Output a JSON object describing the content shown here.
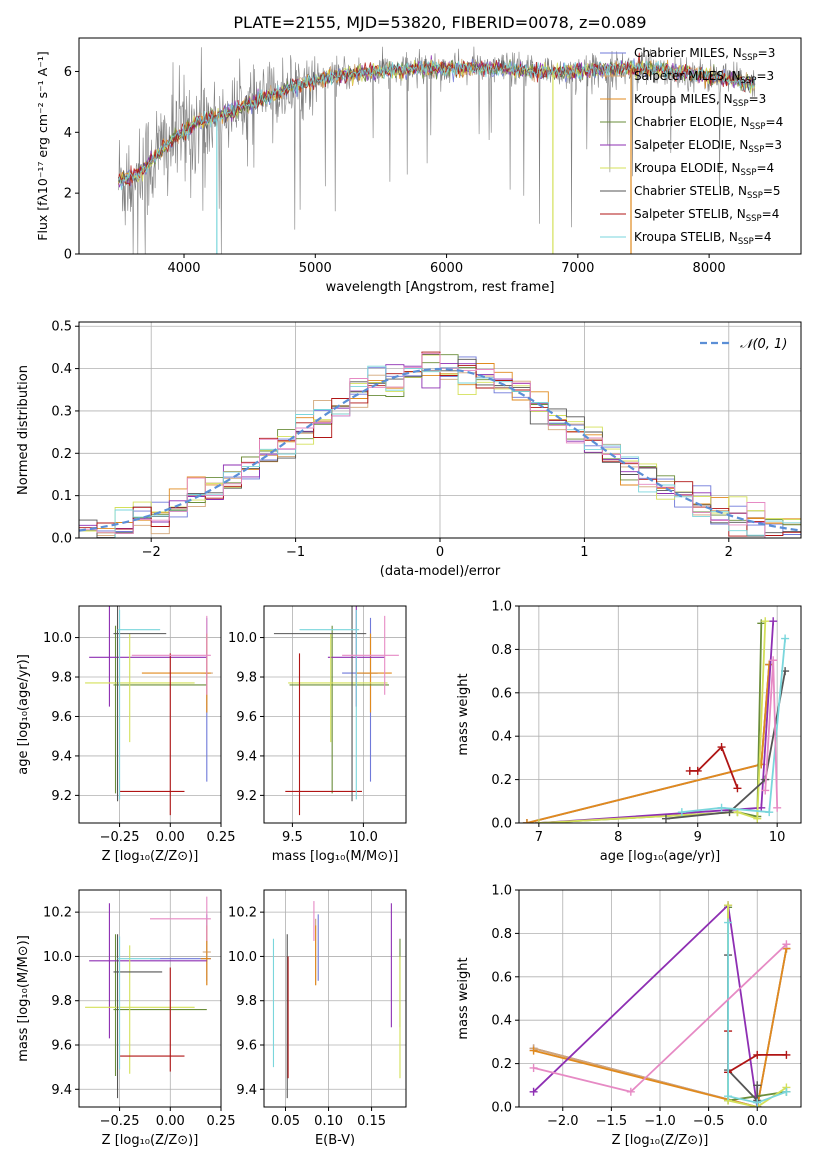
{
  "figure_title": "PLATE=2155, MJD=53820, FIBERID=0078, z=0.089",
  "colors": {
    "chabrier_miles": "#6f79d9",
    "salpeter_miles": "#d2a679",
    "kroupa_miles": "#e08a1e",
    "chabrier_elodie": "#6a8d3a",
    "salpeter_elodie": "#8e2fb3",
    "kroupa_elodie": "#d4e05a",
    "chabrier_stelib": "#555555",
    "salpeter_stelib": "#b01515",
    "kroupa_stelib": "#7ad6dc",
    "grey_data": "#808080",
    "gauss": "#5b8fd6",
    "pink": "#e68ac4"
  },
  "chart_data": [
    {
      "id": "spectrum",
      "type": "line",
      "xlabel": "wavelength [Angstrom, rest frame]",
      "ylabel": "Flux [fλ10⁻¹⁷ erg cm⁻² s⁻¹ A⁻¹]",
      "xlim": [
        3200,
        8700
      ],
      "ylim": [
        0,
        7.1
      ],
      "xticks": [
        "4000",
        "5000",
        "6000",
        "7000",
        "8000"
      ],
      "yticks": [
        "0",
        "2",
        "4",
        "6"
      ],
      "legend_position": "right",
      "legend": [
        {
          "label": "Chabrier MILES, N",
          "sub": "SSP",
          "eq": "=3",
          "color": "#6f79d9"
        },
        {
          "label": "Salpeter MILES, N",
          "sub": "SSP",
          "eq": "=3",
          "color": "#d2a679"
        },
        {
          "label": "Kroupa MILES, N",
          "sub": "SSP",
          "eq": "=3",
          "color": "#e08a1e"
        },
        {
          "label": "Chabrier ELODIE, N",
          "sub": "SSP",
          "eq": "=4",
          "color": "#6a8d3a"
        },
        {
          "label": "Salpeter ELODIE, N",
          "sub": "SSP",
          "eq": "=3",
          "color": "#8e2fb3"
        },
        {
          "label": "Kroupa ELODIE, N",
          "sub": "SSP",
          "eq": "=4",
          "color": "#d4e05a"
        },
        {
          "label": "Chabrier STELIB, N",
          "sub": "SSP",
          "eq": "=5",
          "color": "#555555"
        },
        {
          "label": "Salpeter STELIB, N",
          "sub": "SSP",
          "eq": "=4",
          "color": "#b01515"
        },
        {
          "label": "Kroupa STELIB, N",
          "sub": "SSP",
          "eq": "=4",
          "color": "#7ad6dc"
        }
      ],
      "continuum": [
        [
          3500,
          2.4
        ],
        [
          3650,
          2.6
        ],
        [
          3800,
          3.3
        ],
        [
          3950,
          3.9
        ],
        [
          4100,
          4.3
        ],
        [
          4300,
          4.6
        ],
        [
          4600,
          5.1
        ],
        [
          4900,
          5.6
        ],
        [
          5200,
          5.9
        ],
        [
          5500,
          6.0
        ],
        [
          5800,
          6.1
        ],
        [
          6100,
          6.1
        ],
        [
          6400,
          6.1
        ],
        [
          6700,
          6.0
        ],
        [
          7000,
          6.0
        ],
        [
          7300,
          6.1
        ],
        [
          7600,
          6.1
        ],
        [
          7900,
          5.9
        ],
        [
          8200,
          5.7
        ],
        [
          8350,
          5.6
        ]
      ]
    },
    {
      "id": "residuals",
      "type": "line",
      "xlabel": "(data-model)/error",
      "ylabel": "Normed distribution",
      "xlim": [
        -2.5,
        2.5
      ],
      "ylim": [
        0,
        0.51
      ],
      "xticks": [
        "−2",
        "−1",
        "0",
        "1",
        "2"
      ],
      "yticks": [
        "0.0",
        "0.1",
        "0.2",
        "0.3",
        "0.4",
        "0.5"
      ],
      "legend_position": "top-right",
      "legend": [
        {
          "label": "𝒩(0, 1)",
          "color": "#5b8fd6"
        }
      ]
    },
    {
      "id": "age-vs-Z",
      "type": "scatter",
      "xlabel": "Z [log₁₀(Z/Z⊙)]",
      "ylabel": "age  [log₁₀(age/yr)]",
      "xlim": [
        -0.45,
        0.25
      ],
      "ylim": [
        9.06,
        10.16
      ],
      "xticks": [
        "−0.25",
        "0.00",
        "0.25"
      ],
      "yticks": [
        "9.2",
        "9.4",
        "9.6",
        "9.8",
        "10.0"
      ],
      "points": [
        {
          "x": 0.18,
          "y": 9.82,
          "xerr": [
            0.01,
            0.01
          ],
          "yerr": [
            0.55,
            0.28
          ],
          "color": "#6f79d9"
        },
        {
          "x": 0.18,
          "y": 9.82,
          "xerr": [
            0.03,
            0.03
          ],
          "yerr": [
            0.2,
            0.2
          ],
          "color": "#d2a679"
        },
        {
          "x": 0.18,
          "y": 9.82,
          "xerr": [
            0.32,
            0.02
          ],
          "yerr": [
            0.2,
            0.2
          ],
          "color": "#e08a1e"
        },
        {
          "x": -0.27,
          "y": 9.76,
          "xerr": [
            0.01,
            0.45
          ],
          "yerr": [
            0.55,
            0.3
          ],
          "color": "#6a8d3a"
        },
        {
          "x": -0.3,
          "y": 9.9,
          "xerr": [
            0.1,
            0.48
          ],
          "yerr": [
            0.25,
            0.27
          ],
          "color": "#8e2fb3"
        },
        {
          "x": -0.2,
          "y": 9.77,
          "xerr": [
            0.22,
            0.32
          ],
          "yerr": [
            0.3,
            0.25
          ],
          "color": "#d4e05a"
        },
        {
          "x": -0.26,
          "y": 10.02,
          "xerr": [
            0.02,
            0.24
          ],
          "yerr": [
            0.85,
            0.15
          ],
          "color": "#555555"
        },
        {
          "x": 0.0,
          "y": 9.22,
          "xerr": [
            0.25,
            0.07
          ],
          "yerr": [
            0.12,
            0.7
          ],
          "color": "#b01515"
        },
        {
          "x": -0.25,
          "y": 10.04,
          "xerr": [
            0.01,
            0.2
          ],
          "yerr": [
            0.86,
            0.1
          ],
          "color": "#7ad6dc"
        },
        {
          "x": 0.18,
          "y": 9.91,
          "xerr": [
            0.37,
            0.02
          ],
          "yerr": [
            0.2,
            0.2
          ],
          "color": "#e68ac4"
        }
      ]
    },
    {
      "id": "age-vs-mass",
      "type": "scatter",
      "xlabel": "mass [log₁₀(M/M⊙)]",
      "ylabel": "",
      "xlim": [
        9.3,
        10.3
      ],
      "ylim": [
        9.06,
        10.16
      ],
      "xticks": [
        "9.5",
        "10.0"
      ],
      "yticks": [
        "9.2",
        "9.4",
        "9.6",
        "9.8",
        "10.0"
      ],
      "points": [
        {
          "x": 10.05,
          "y": 9.82,
          "xerr": [
            0.2,
            0.05
          ],
          "yerr": [
            0.55,
            0.28
          ],
          "color": "#6f79d9"
        },
        {
          "x": 10.05,
          "y": 9.82,
          "xerr": [
            0.05,
            0.05
          ],
          "yerr": [
            0.2,
            0.2
          ],
          "color": "#d2a679"
        },
        {
          "x": 10.05,
          "y": 9.82,
          "xerr": [
            0.1,
            0.15
          ],
          "yerr": [
            0.2,
            0.2
          ],
          "color": "#e08a1e"
        },
        {
          "x": 9.78,
          "y": 9.76,
          "xerr": [
            0.3,
            0.4
          ],
          "yerr": [
            0.55,
            0.3
          ],
          "color": "#6a8d3a"
        },
        {
          "x": 9.95,
          "y": 9.9,
          "xerr": [
            0.2,
            0.2
          ],
          "yerr": [
            0.25,
            0.27
          ],
          "color": "#8e2fb3"
        },
        {
          "x": 9.77,
          "y": 9.77,
          "xerr": [
            0.3,
            0.4
          ],
          "yerr": [
            0.3,
            0.25
          ],
          "color": "#d4e05a"
        },
        {
          "x": 9.92,
          "y": 10.02,
          "xerr": [
            0.55,
            0.1
          ],
          "yerr": [
            0.85,
            0.15
          ],
          "color": "#555555"
        },
        {
          "x": 9.55,
          "y": 9.22,
          "xerr": [
            0.1,
            0.44
          ],
          "yerr": [
            0.12,
            0.7
          ],
          "color": "#b01515"
        },
        {
          "x": 9.95,
          "y": 10.04,
          "xerr": [
            0.4,
            0.02
          ],
          "yerr": [
            0.86,
            0.1
          ],
          "color": "#7ad6dc"
        },
        {
          "x": 10.15,
          "y": 9.91,
          "xerr": [
            0.3,
            0.1
          ],
          "yerr": [
            0.2,
            0.2
          ],
          "color": "#e68ac4"
        }
      ]
    },
    {
      "id": "mass-weight-vs-age",
      "type": "line",
      "xlabel": "age  [log₁₀(age/yr)]",
      "ylabel": "mass weight",
      "xlim": [
        6.75,
        10.3
      ],
      "ylim": [
        0,
        1.0
      ],
      "xticks": [
        "7",
        "8",
        "9",
        "10"
      ],
      "yticks": [
        "0.0",
        "0.2",
        "0.4",
        "0.6",
        "0.8",
        "1.0"
      ],
      "series": [
        {
          "color": "#6f79d9",
          "x": [
            6.85,
            9.8,
            9.9
          ],
          "y": [
            0.0,
            0.27,
            0.73
          ]
        },
        {
          "color": "#d2a679",
          "x": [
            6.85,
            9.8,
            9.9
          ],
          "y": [
            0.0,
            0.27,
            0.73
          ]
        },
        {
          "color": "#e08a1e",
          "x": [
            6.85,
            9.8,
            9.9
          ],
          "y": [
            0.0,
            0.27,
            0.73
          ]
        },
        {
          "color": "#6a8d3a",
          "x": [
            7.0,
            9.5,
            9.75,
            9.8
          ],
          "y": [
            0.0,
            0.05,
            0.03,
            0.92
          ]
        },
        {
          "color": "#8e2fb3",
          "x": [
            7.0,
            9.8,
            9.95
          ],
          "y": [
            0.0,
            0.07,
            0.93
          ]
        },
        {
          "color": "#d4e05a",
          "x": [
            7.0,
            9.5,
            9.75,
            9.85
          ],
          "y": [
            0.0,
            0.05,
            0.02,
            0.93
          ]
        },
        {
          "color": "#555555",
          "x": [
            8.6,
            9.4,
            9.85,
            10.1
          ],
          "y": [
            0.02,
            0.05,
            0.2,
            0.7
          ]
        },
        {
          "color": "#b01515",
          "x": [
            8.9,
            9.0,
            9.3,
            9.5
          ],
          "y": [
            0.24,
            0.24,
            0.35,
            0.16
          ]
        },
        {
          "color": "#7ad6dc",
          "x": [
            8.8,
            9.3,
            9.9,
            10.1
          ],
          "y": [
            0.05,
            0.07,
            0.05,
            0.85
          ]
        },
        {
          "color": "#e68ac4",
          "x": [
            9.85,
            9.95,
            10.0
          ],
          "y": [
            0.15,
            0.75,
            0.07
          ]
        }
      ]
    },
    {
      "id": "mass-vs-Z",
      "type": "scatter",
      "xlabel": "Z [log₁₀(Z/Z⊙)]",
      "ylabel": "mass [log₁₀(M/M⊙)]",
      "xlim": [
        -0.45,
        0.25
      ],
      "ylim": [
        9.32,
        10.3
      ],
      "xticks": [
        "−0.25",
        "0.00",
        "0.25"
      ],
      "yticks": [
        "9.4",
        "9.6",
        "9.8",
        "10.0",
        "10.2"
      ],
      "points": [
        {
          "x": 0.18,
          "y": 9.99,
          "xerr": [
            0.28,
            0.02
          ],
          "yerr": [
            0.1,
            0.2
          ],
          "color": "#6f79d9"
        },
        {
          "x": 0.18,
          "y": 10.02,
          "xerr": [
            0.02,
            0.02
          ],
          "yerr": [
            0.15,
            0.15
          ],
          "color": "#d2a679"
        },
        {
          "x": 0.18,
          "y": 9.99,
          "xerr": [
            0.03,
            0.02
          ],
          "yerr": [
            0.12,
            0.15
          ],
          "color": "#e08a1e"
        },
        {
          "x": -0.27,
          "y": 9.76,
          "xerr": [
            0.01,
            0.45
          ],
          "yerr": [
            0.3,
            0.34
          ],
          "color": "#6a8d3a"
        },
        {
          "x": -0.3,
          "y": 9.98,
          "xerr": [
            0.1,
            0.48
          ],
          "yerr": [
            0.35,
            0.26
          ],
          "color": "#8e2fb3"
        },
        {
          "x": -0.2,
          "y": 9.77,
          "xerr": [
            0.22,
            0.32
          ],
          "yerr": [
            0.3,
            0.28
          ],
          "color": "#d4e05a"
        },
        {
          "x": -0.26,
          "y": 9.93,
          "xerr": [
            0.02,
            0.22
          ],
          "yerr": [
            0.57,
            0.17
          ],
          "color": "#555555"
        },
        {
          "x": 0.0,
          "y": 9.55,
          "xerr": [
            0.25,
            0.07
          ],
          "yerr": [
            0.07,
            0.4
          ],
          "color": "#b01515"
        },
        {
          "x": -0.25,
          "y": 9.99,
          "xerr": [
            0.01,
            0.2
          ],
          "yerr": [
            0.5,
            0.1
          ],
          "color": "#7ad6dc"
        },
        {
          "x": 0.18,
          "y": 10.17,
          "xerr": [
            0.28,
            0.02
          ],
          "yerr": [
            0.1,
            0.1
          ],
          "color": "#e68ac4"
        }
      ]
    },
    {
      "id": "mass-vs-ebv",
      "type": "scatter",
      "xlabel": "E(B-V)",
      "ylabel": "",
      "xlim": [
        0.025,
        0.19
      ],
      "ylim": [
        9.32,
        10.3
      ],
      "xticks": [
        "0.05",
        "0.10",
        "0.15"
      ],
      "yticks": [
        "9.4",
        "9.6",
        "9.8",
        "10.0",
        "10.2"
      ],
      "points": [
        {
          "x": 0.088,
          "y": 9.99,
          "yerr": [
            0.1,
            0.2
          ],
          "color": "#6f79d9"
        },
        {
          "x": 0.085,
          "y": 10.02,
          "yerr": [
            0.15,
            0.15
          ],
          "color": "#d2a679"
        },
        {
          "x": 0.085,
          "y": 9.99,
          "yerr": [
            0.12,
            0.15
          ],
          "color": "#e08a1e"
        },
        {
          "x": 0.183,
          "y": 9.98,
          "yerr": [
            0.3,
            0.1
          ],
          "color": "#6a8d3a"
        },
        {
          "x": 0.173,
          "y": 9.98,
          "yerr": [
            0.3,
            0.26
          ],
          "color": "#8e2fb3"
        },
        {
          "x": 0.183,
          "y": 9.8,
          "yerr": [
            0.35,
            0.2
          ],
          "color": "#d4e05a"
        },
        {
          "x": 0.052,
          "y": 9.93,
          "yerr": [
            0.57,
            0.17
          ],
          "color": "#555555"
        },
        {
          "x": 0.053,
          "y": 9.55,
          "yerr": [
            0.1,
            0.45
          ],
          "color": "#b01515"
        },
        {
          "x": 0.036,
          "y": 9.8,
          "yerr": [
            0.3,
            0.28
          ],
          "color": "#7ad6dc"
        },
        {
          "x": 0.083,
          "y": 10.17,
          "yerr": [
            0.1,
            0.08
          ],
          "color": "#e68ac4"
        }
      ]
    },
    {
      "id": "mass-weight-vs-Z",
      "type": "line",
      "xlabel": "Z [log₁₀(Z/Z⊙)]",
      "ylabel": "mass weight",
      "xlim": [
        -2.45,
        0.45
      ],
      "ylim": [
        0,
        1.0
      ],
      "xticks": [
        "−2.0",
        "−1.5",
        "−1.0",
        "−0.5",
        "0.0"
      ],
      "yticks": [
        "0.0",
        "0.2",
        "0.4",
        "0.6",
        "0.8",
        "1.0"
      ],
      "series": [
        {
          "color": "#6f79d9",
          "x": [
            -2.3,
            0.0,
            0.3
          ],
          "y": [
            0.27,
            0.0,
            0.73
          ]
        },
        {
          "color": "#d2a679",
          "x": [
            -2.3,
            0.0,
            0.3
          ],
          "y": [
            0.27,
            0.0,
            0.73
          ]
        },
        {
          "color": "#e08a1e",
          "x": [
            -2.3,
            0.0,
            0.3
          ],
          "y": [
            0.26,
            0.0,
            0.73
          ]
        },
        {
          "color": "#6a8d3a",
          "x": [
            -0.3,
            -0.3,
            0.0,
            0.3
          ],
          "y": [
            0.92,
            0.03,
            0.05,
            0.07
          ]
        },
        {
          "color": "#8e2fb3",
          "x": [
            -2.3,
            -0.3,
            0.0
          ],
          "y": [
            0.07,
            0.93,
            0.0
          ]
        },
        {
          "color": "#d4e05a",
          "x": [
            -0.3,
            -0.3,
            0.0,
            0.3
          ],
          "y": [
            0.93,
            0.03,
            0.0,
            0.09
          ]
        },
        {
          "color": "#555555",
          "x": [
            -0.3,
            -0.3,
            0.0,
            0.0
          ],
          "y": [
            0.7,
            0.17,
            0.03,
            0.1
          ]
        },
        {
          "color": "#b01515",
          "x": [
            -0.3,
            -0.3,
            0.0,
            0.3
          ],
          "y": [
            0.35,
            0.16,
            0.24,
            0.24
          ]
        },
        {
          "color": "#7ad6dc",
          "x": [
            -0.3,
            -0.3,
            0.0,
            0.3
          ],
          "y": [
            0.85,
            0.05,
            0.02,
            0.07
          ]
        },
        {
          "color": "#e68ac4",
          "x": [
            -2.3,
            -1.3,
            0.3
          ],
          "y": [
            0.18,
            0.07,
            0.75
          ]
        }
      ]
    }
  ]
}
